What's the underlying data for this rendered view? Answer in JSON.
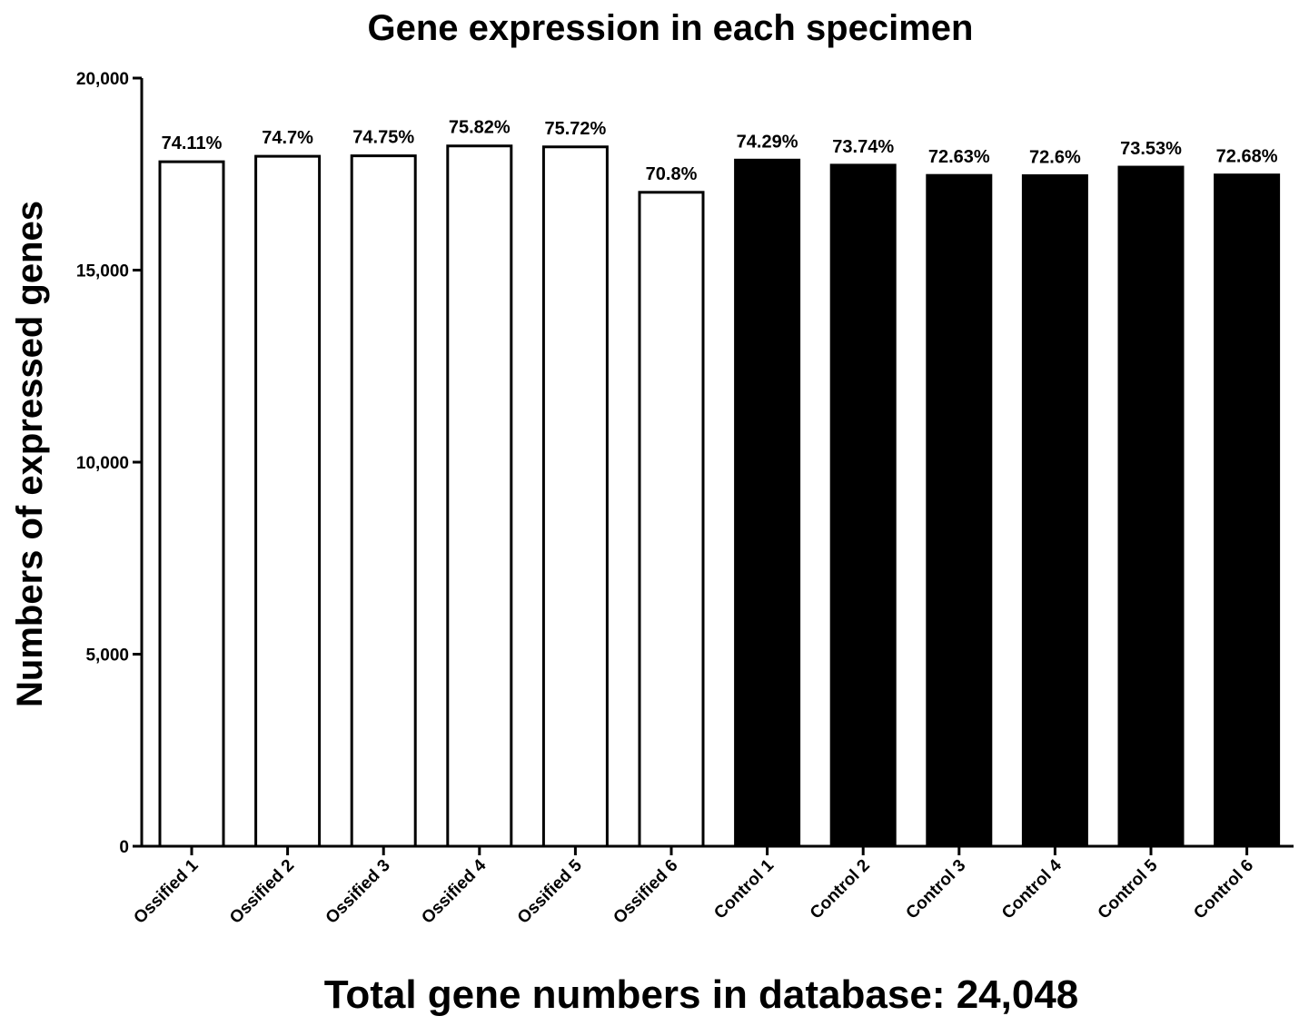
{
  "chart_data": {
    "type": "bar",
    "title": "Gene expression in each specimen",
    "xlabel": "Total gene numbers in database: 24,048",
    "ylabel": "Numbers of expressed genes",
    "ylim": [
      0,
      20000
    ],
    "yticks": [
      0,
      5000,
      10000,
      15000,
      20000
    ],
    "ytick_labels": [
      "0",
      "5,000",
      "10,000",
      "15,000",
      "20,000"
    ],
    "grid": false,
    "legend": "none",
    "categories": [
      "Ossified 1",
      "Ossified 2",
      "Ossified 3",
      "Ossified 4",
      "Ossified 5",
      "Ossified 6",
      "Control 1",
      "Control 2",
      "Control 3",
      "Control 4",
      "Control 5",
      "Control 6"
    ],
    "values": [
      17822,
      17964,
      17976,
      18233,
      18209,
      17026,
      17865,
      17733,
      17466,
      17459,
      17682,
      17478
    ],
    "data_labels": [
      "74.11%",
      "74.7%",
      "74.75%",
      "75.82%",
      "75.72%",
      "70.8%",
      "74.29%",
      "73.74%",
      "72.63%",
      "72.6%",
      "73.53%",
      "72.68%"
    ],
    "bar_fills": [
      "#ffffff",
      "#ffffff",
      "#ffffff",
      "#ffffff",
      "#ffffff",
      "#ffffff",
      "#000000",
      "#000000",
      "#000000",
      "#000000",
      "#000000",
      "#000000"
    ],
    "bar_stroke": "#000000"
  }
}
